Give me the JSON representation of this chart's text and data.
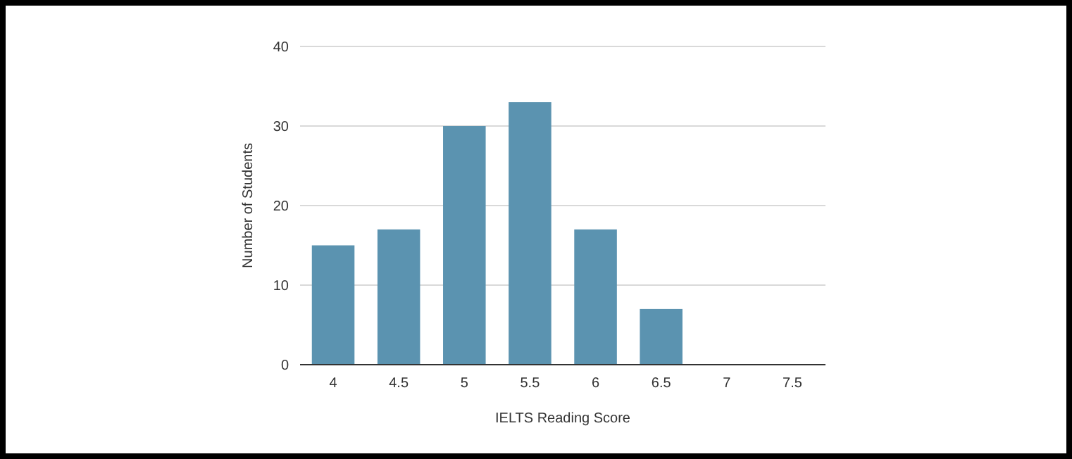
{
  "chart_data": {
    "type": "bar",
    "xlabel": "IELTS Reading Score",
    "ylabel": "Number of Students",
    "categories": [
      "4",
      "4.5",
      "5",
      "5.5",
      "6",
      "6.5",
      "7",
      "7.5"
    ],
    "values": [
      15,
      17,
      30,
      33,
      17,
      7,
      0,
      0
    ],
    "color": "#5b93b0",
    "ylim": [
      0,
      40
    ],
    "yticks": [
      0,
      10,
      20,
      30,
      40
    ],
    "grid": "y"
  }
}
